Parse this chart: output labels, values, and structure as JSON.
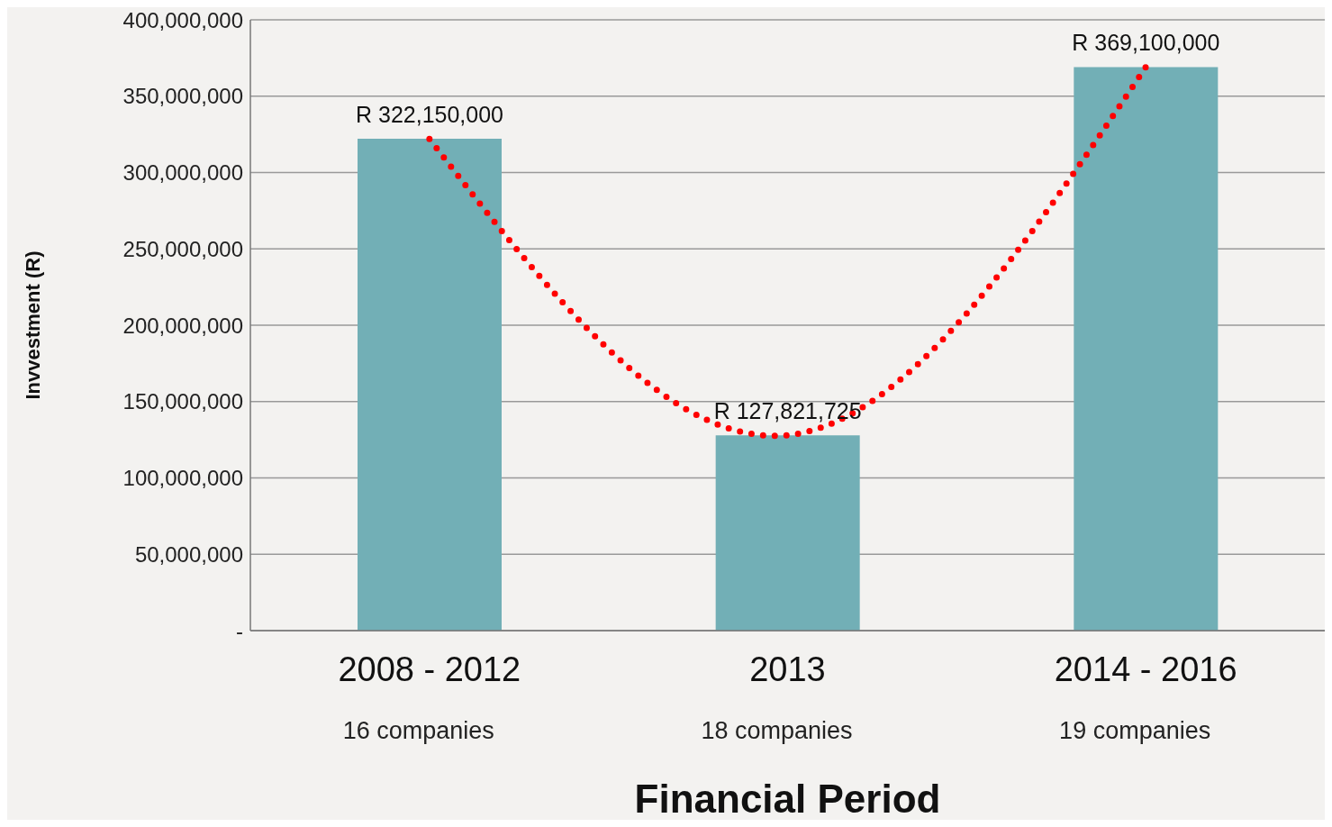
{
  "chart_data": {
    "type": "bar",
    "xlabel": "Financial Period",
    "ylabel": "Invvestment (R)",
    "categories": [
      "2008 - 2012",
      "2013",
      "2014 - 2016"
    ],
    "series": [
      {
        "color": "#72afb6",
        "values": [
          322150000,
          127821725,
          369100000
        ],
        "value_labels": [
          "R 322,150,000",
          "R 127,821,725",
          "R 369,100,000"
        ]
      },
      {
        "type": "line",
        "color": "#ff0000",
        "values": [
          322000000,
          128000000,
          369000000
        ],
        "line_style": "dotted",
        "marker": "none"
      }
    ],
    "annotations": [
      "16 companies",
      "18 companies",
      "19 companies"
    ],
    "ylim": [
      0,
      400000000
    ],
    "yticks": [
      {
        "value": 0,
        "label": "-"
      },
      {
        "value": 50000000,
        "label": "50,000,000"
      },
      {
        "value": 100000000,
        "label": "100,000,000"
      },
      {
        "value": 150000000,
        "label": "150,000,000"
      },
      {
        "value": 200000000,
        "label": "200,000,000"
      },
      {
        "value": 250000000,
        "label": "250,000,000"
      },
      {
        "value": 300000000,
        "label": "300,000,000"
      },
      {
        "value": 350000000,
        "label": "350,000,000"
      },
      {
        "value": 400000000,
        "label": "400,000,000"
      }
    ],
    "grid": "y",
    "legend": false
  }
}
